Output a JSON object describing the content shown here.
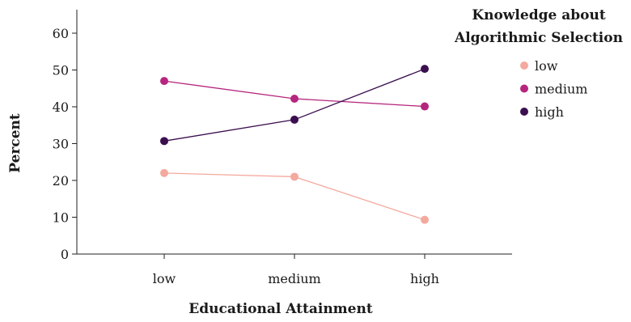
{
  "chart_data": {
    "type": "line",
    "categories": [
      "low",
      "medium",
      "high"
    ],
    "xlabel": "Educational Attainment",
    "ylabel": "Percent",
    "ylim": [
      0,
      65
    ],
    "yticks": [
      0,
      10,
      20,
      30,
      40,
      50,
      60
    ],
    "legend": {
      "title_lines": [
        "Knowledge about",
        "Algorithmic Selection"
      ],
      "placement": "right"
    },
    "series": [
      {
        "name": "low",
        "color": "#f4a99e",
        "values": [
          22,
          21,
          9.3
        ]
      },
      {
        "name": "medium",
        "color": "#b5267e",
        "values": [
          47,
          42.2,
          40.1
        ]
      },
      {
        "name": "high",
        "color": "#3b0f4f",
        "values": [
          30.7,
          36.5,
          50.3
        ]
      }
    ],
    "grid": false
  }
}
